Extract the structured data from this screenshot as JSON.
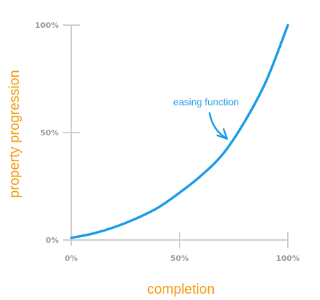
{
  "chart_data": {
    "type": "line",
    "title": "",
    "xlabel": "completion",
    "ylabel": "property progression",
    "xlim": [
      0,
      100
    ],
    "ylim": [
      0,
      100
    ],
    "x_ticks": [
      "0%",
      "50%",
      "100%"
    ],
    "y_ticks": [
      "0%",
      "50%",
      "100%"
    ],
    "grid": false,
    "annotation": "easing function",
    "series": [
      {
        "color": "#1a9be6",
        "x": [
          0,
          10,
          20,
          30,
          40,
          50,
          60,
          70,
          80,
          90,
          100
        ],
        "y": [
          1,
          3,
          6,
          10,
          15,
          22,
          30,
          40,
          55,
          74,
          100
        ]
      }
    ],
    "axis_color": "#cccccc",
    "tick_label_color": "#9a9a9a",
    "axis_title_color": "#f39c12",
    "annotation_color": "#1a9be6"
  }
}
